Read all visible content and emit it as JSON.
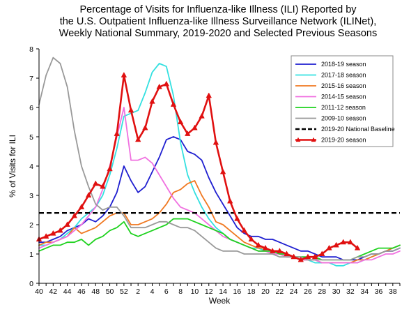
{
  "chart_data": {
    "type": "line",
    "title_lines": [
      "Percentage of Visits for Influenza-like Illness (ILI) Reported by",
      "the U.S. Outpatient Influenza-like Illness Surveillance Network (ILINet),",
      "Weekly National Summary, 2019-2020 and Selected Previous Seasons"
    ],
    "xlabel": "Week",
    "ylabel": "% of Visits for ILI",
    "ylim": [
      0,
      8
    ],
    "yticks": [
      0,
      1,
      2,
      3,
      4,
      5,
      6,
      7,
      8
    ],
    "x_tick_labels": [
      "40",
      "42",
      "44",
      "46",
      "48",
      "50",
      "52",
      "2",
      "4",
      "6",
      "8",
      "10",
      "12",
      "14",
      "16",
      "18",
      "20",
      "22",
      "24",
      "26",
      "28",
      "30",
      "32",
      "34",
      "36",
      "38"
    ],
    "x_index_range": [
      0,
      51
    ],
    "x_note": "x is the week index from week 40 (0 = week 40, 12 = week 52, 13 = week 1)",
    "grid": false,
    "legend_position": "right",
    "series": [
      {
        "name": "2018-19 season",
        "color": "#1f1fd0",
        "x": [
          0,
          1,
          2,
          3,
          4,
          5,
          6,
          7,
          8,
          9,
          10,
          11,
          12,
          13,
          14,
          15,
          16,
          17,
          18,
          19,
          20,
          21,
          22,
          23,
          24,
          25,
          26,
          27,
          28,
          29,
          30,
          31,
          32,
          33,
          34,
          35,
          36,
          37,
          38,
          39,
          40,
          41,
          42,
          43,
          44,
          45,
          46,
          47,
          48,
          49,
          50,
          51
        ],
        "values": [
          1.4,
          1.4,
          1.5,
          1.6,
          1.8,
          1.9,
          2.0,
          2.2,
          2.1,
          2.3,
          2.6,
          3.1,
          4.0,
          3.5,
          3.1,
          3.3,
          3.8,
          4.3,
          4.9,
          5.0,
          4.9,
          4.5,
          4.4,
          4.2,
          3.6,
          3.1,
          2.7,
          2.3,
          1.9,
          1.7,
          1.6,
          1.6,
          1.5,
          1.5,
          1.4,
          1.3,
          1.2,
          1.1,
          1.1,
          1.0,
          0.9,
          0.9,
          0.9,
          0.8,
          0.8,
          0.8,
          0.9,
          1.0,
          1.0,
          1.1,
          1.1,
          1.2
        ]
      },
      {
        "name": "2017-18 season",
        "color": "#33e0e0",
        "x": [
          0,
          1,
          2,
          3,
          4,
          5,
          6,
          7,
          8,
          9,
          10,
          11,
          12,
          13,
          14,
          15,
          16,
          17,
          18,
          19,
          20,
          21,
          22,
          23,
          24,
          25,
          26,
          27,
          28,
          29,
          30,
          31,
          32,
          33,
          34,
          35,
          36,
          37,
          38,
          39,
          40,
          41,
          42,
          43,
          44,
          45,
          46,
          47,
          48,
          49,
          50,
          51
        ],
        "values": [
          1.3,
          1.3,
          1.4,
          1.5,
          1.7,
          1.9,
          2.2,
          2.4,
          2.6,
          3.0,
          3.7,
          4.6,
          5.7,
          5.8,
          5.9,
          6.5,
          7.2,
          7.5,
          7.4,
          6.4,
          4.8,
          3.7,
          3.1,
          2.6,
          2.2,
          1.9,
          1.7,
          1.5,
          1.4,
          1.3,
          1.2,
          1.2,
          1.1,
          1.1,
          1.0,
          1.0,
          0.9,
          0.8,
          0.8,
          0.7,
          0.7,
          0.7,
          0.6,
          0.6,
          0.7,
          0.7,
          0.8,
          0.9,
          1.0,
          1.1,
          1.2,
          1.3
        ]
      },
      {
        "name": "2015-16 season",
        "color": "#f07820",
        "x": [
          0,
          1,
          2,
          3,
          4,
          5,
          6,
          7,
          8,
          9,
          10,
          11,
          12,
          13,
          14,
          15,
          16,
          17,
          18,
          19,
          20,
          21,
          22,
          23,
          24,
          25,
          26,
          27,
          28,
          29,
          30,
          31,
          32,
          33,
          34,
          35,
          36,
          37,
          38,
          39,
          40,
          41,
          42,
          43,
          44,
          45,
          46,
          47,
          48,
          49,
          50,
          51
        ],
        "values": [
          1.3,
          1.4,
          1.4,
          1.5,
          1.6,
          1.9,
          1.7,
          1.8,
          1.9,
          2.1,
          2.3,
          2.4,
          2.4,
          2.0,
          2.0,
          2.1,
          2.2,
          2.4,
          2.7,
          3.1,
          3.2,
          3.4,
          3.5,
          3.0,
          2.6,
          2.1,
          2.0,
          1.8,
          1.6,
          1.4,
          1.3,
          1.2,
          1.2,
          1.1,
          1.0,
          0.9,
          0.9,
          0.8,
          0.8,
          0.8,
          0.7,
          0.7,
          0.7,
          0.7,
          0.7,
          0.8,
          0.8,
          0.9,
          1.0,
          1.1,
          1.2,
          1.3
        ]
      },
      {
        "name": "2014-15 season",
        "color": "#f070e0",
        "x": [
          0,
          1,
          2,
          3,
          4,
          5,
          6,
          7,
          8,
          9,
          10,
          11,
          12,
          13,
          14,
          15,
          16,
          17,
          18,
          19,
          20,
          21,
          22,
          23,
          24,
          25,
          26,
          27,
          28,
          29,
          30,
          31,
          32,
          33,
          34,
          35,
          36,
          37,
          38,
          39,
          40,
          41,
          42,
          43,
          44,
          45,
          46,
          47,
          48,
          49,
          50,
          51
        ],
        "values": [
          1.2,
          1.3,
          1.4,
          1.5,
          1.6,
          1.8,
          2.0,
          2.3,
          2.6,
          3.2,
          4.0,
          5.0,
          6.0,
          4.2,
          4.2,
          4.3,
          4.1,
          3.7,
          3.3,
          2.9,
          2.6,
          2.5,
          2.4,
          2.2,
          2.0,
          1.8,
          1.6,
          1.5,
          1.4,
          1.3,
          1.2,
          1.1,
          1.1,
          1.0,
          1.0,
          0.9,
          0.9,
          0.8,
          0.8,
          0.8,
          0.7,
          0.7,
          0.7,
          0.7,
          0.7,
          0.7,
          0.8,
          0.8,
          0.9,
          1.0,
          1.0,
          1.1
        ]
      },
      {
        "name": "2011-12 season",
        "color": "#1ed21e",
        "x": [
          0,
          1,
          2,
          3,
          4,
          5,
          6,
          7,
          8,
          9,
          10,
          11,
          12,
          13,
          14,
          15,
          16,
          17,
          18,
          19,
          20,
          21,
          22,
          23,
          24,
          25,
          26,
          27,
          28,
          29,
          30,
          31,
          32,
          33,
          34,
          35,
          36,
          37,
          38,
          39,
          40,
          41,
          42,
          43,
          44,
          45,
          46,
          47,
          48,
          49,
          50,
          51
        ],
        "values": [
          1.1,
          1.2,
          1.3,
          1.3,
          1.4,
          1.4,
          1.5,
          1.3,
          1.5,
          1.6,
          1.8,
          1.9,
          2.1,
          1.7,
          1.6,
          1.7,
          1.8,
          1.9,
          2.0,
          2.2,
          2.2,
          2.2,
          2.1,
          2.0,
          1.9,
          1.8,
          1.7,
          1.5,
          1.4,
          1.3,
          1.2,
          1.1,
          1.1,
          1.1,
          1.0,
          1.0,
          0.9,
          0.9,
          0.9,
          0.9,
          0.8,
          0.8,
          0.8,
          0.8,
          0.8,
          0.9,
          1.0,
          1.1,
          1.2,
          1.2,
          1.2,
          1.3
        ]
      },
      {
        "name": "2009-10 season",
        "color": "#999999",
        "x": [
          0,
          1,
          2,
          3,
          4,
          5,
          6,
          7,
          8,
          9,
          10,
          11,
          12,
          13,
          14,
          15,
          16,
          17,
          18,
          19,
          20,
          21,
          22,
          23,
          24,
          25,
          26,
          27,
          28,
          29,
          30,
          31,
          32,
          33,
          34,
          35,
          36,
          37,
          38,
          39,
          40,
          41,
          42,
          43,
          44,
          45,
          46,
          47,
          48,
          49,
          50,
          51
        ],
        "values": [
          6.1,
          7.1,
          7.7,
          7.5,
          6.7,
          5.2,
          4.0,
          3.3,
          2.7,
          2.5,
          2.6,
          2.6,
          2.3,
          1.9,
          1.9,
          1.9,
          2.0,
          2.1,
          2.1,
          2.0,
          1.9,
          1.9,
          1.8,
          1.6,
          1.4,
          1.2,
          1.1,
          1.1,
          1.1,
          1.0,
          1.0,
          1.0,
          1.0,
          1.0,
          0.9,
          0.9,
          0.9,
          0.9,
          0.8,
          0.8,
          0.8,
          0.8,
          0.8,
          0.8,
          0.8,
          0.9,
          0.9,
          1.0,
          1.0,
          1.1,
          1.1,
          1.2
        ]
      },
      {
        "name": "2019-20 National Baseline",
        "color": "#000000",
        "dashed": true,
        "x": [
          0,
          51
        ],
        "values": [
          2.4,
          2.4
        ]
      },
      {
        "name": "2019-20 season",
        "color": "#e01010",
        "markers": true,
        "x": [
          0,
          1,
          2,
          3,
          4,
          5,
          6,
          7,
          8,
          9,
          10,
          11,
          12,
          13,
          14,
          15,
          16,
          17,
          18,
          19,
          20,
          21,
          22,
          23,
          24,
          25,
          26,
          27,
          28,
          29,
          30,
          31,
          32,
          33,
          34,
          35,
          36,
          37,
          38,
          39,
          40,
          41,
          42,
          43,
          44,
          45,
          46,
          47,
          48,
          49,
          50
        ],
        "values": [
          1.5,
          1.6,
          1.7,
          1.8,
          2.0,
          2.3,
          2.6,
          3.0,
          3.4,
          3.3,
          3.9,
          5.1,
          7.1,
          5.9,
          4.9,
          5.3,
          6.2,
          6.7,
          6.8,
          6.1,
          5.5,
          5.1,
          5.3,
          5.7,
          6.4,
          4.8,
          3.8,
          2.8,
          2.2,
          1.8,
          1.5,
          1.3,
          1.2,
          1.1,
          1.1,
          1.0,
          0.9,
          0.8,
          0.9,
          0.9,
          1.0,
          1.2,
          1.3,
          1.4,
          1.4,
          1.2,
          null,
          null,
          null,
          null,
          null
        ]
      }
    ]
  }
}
